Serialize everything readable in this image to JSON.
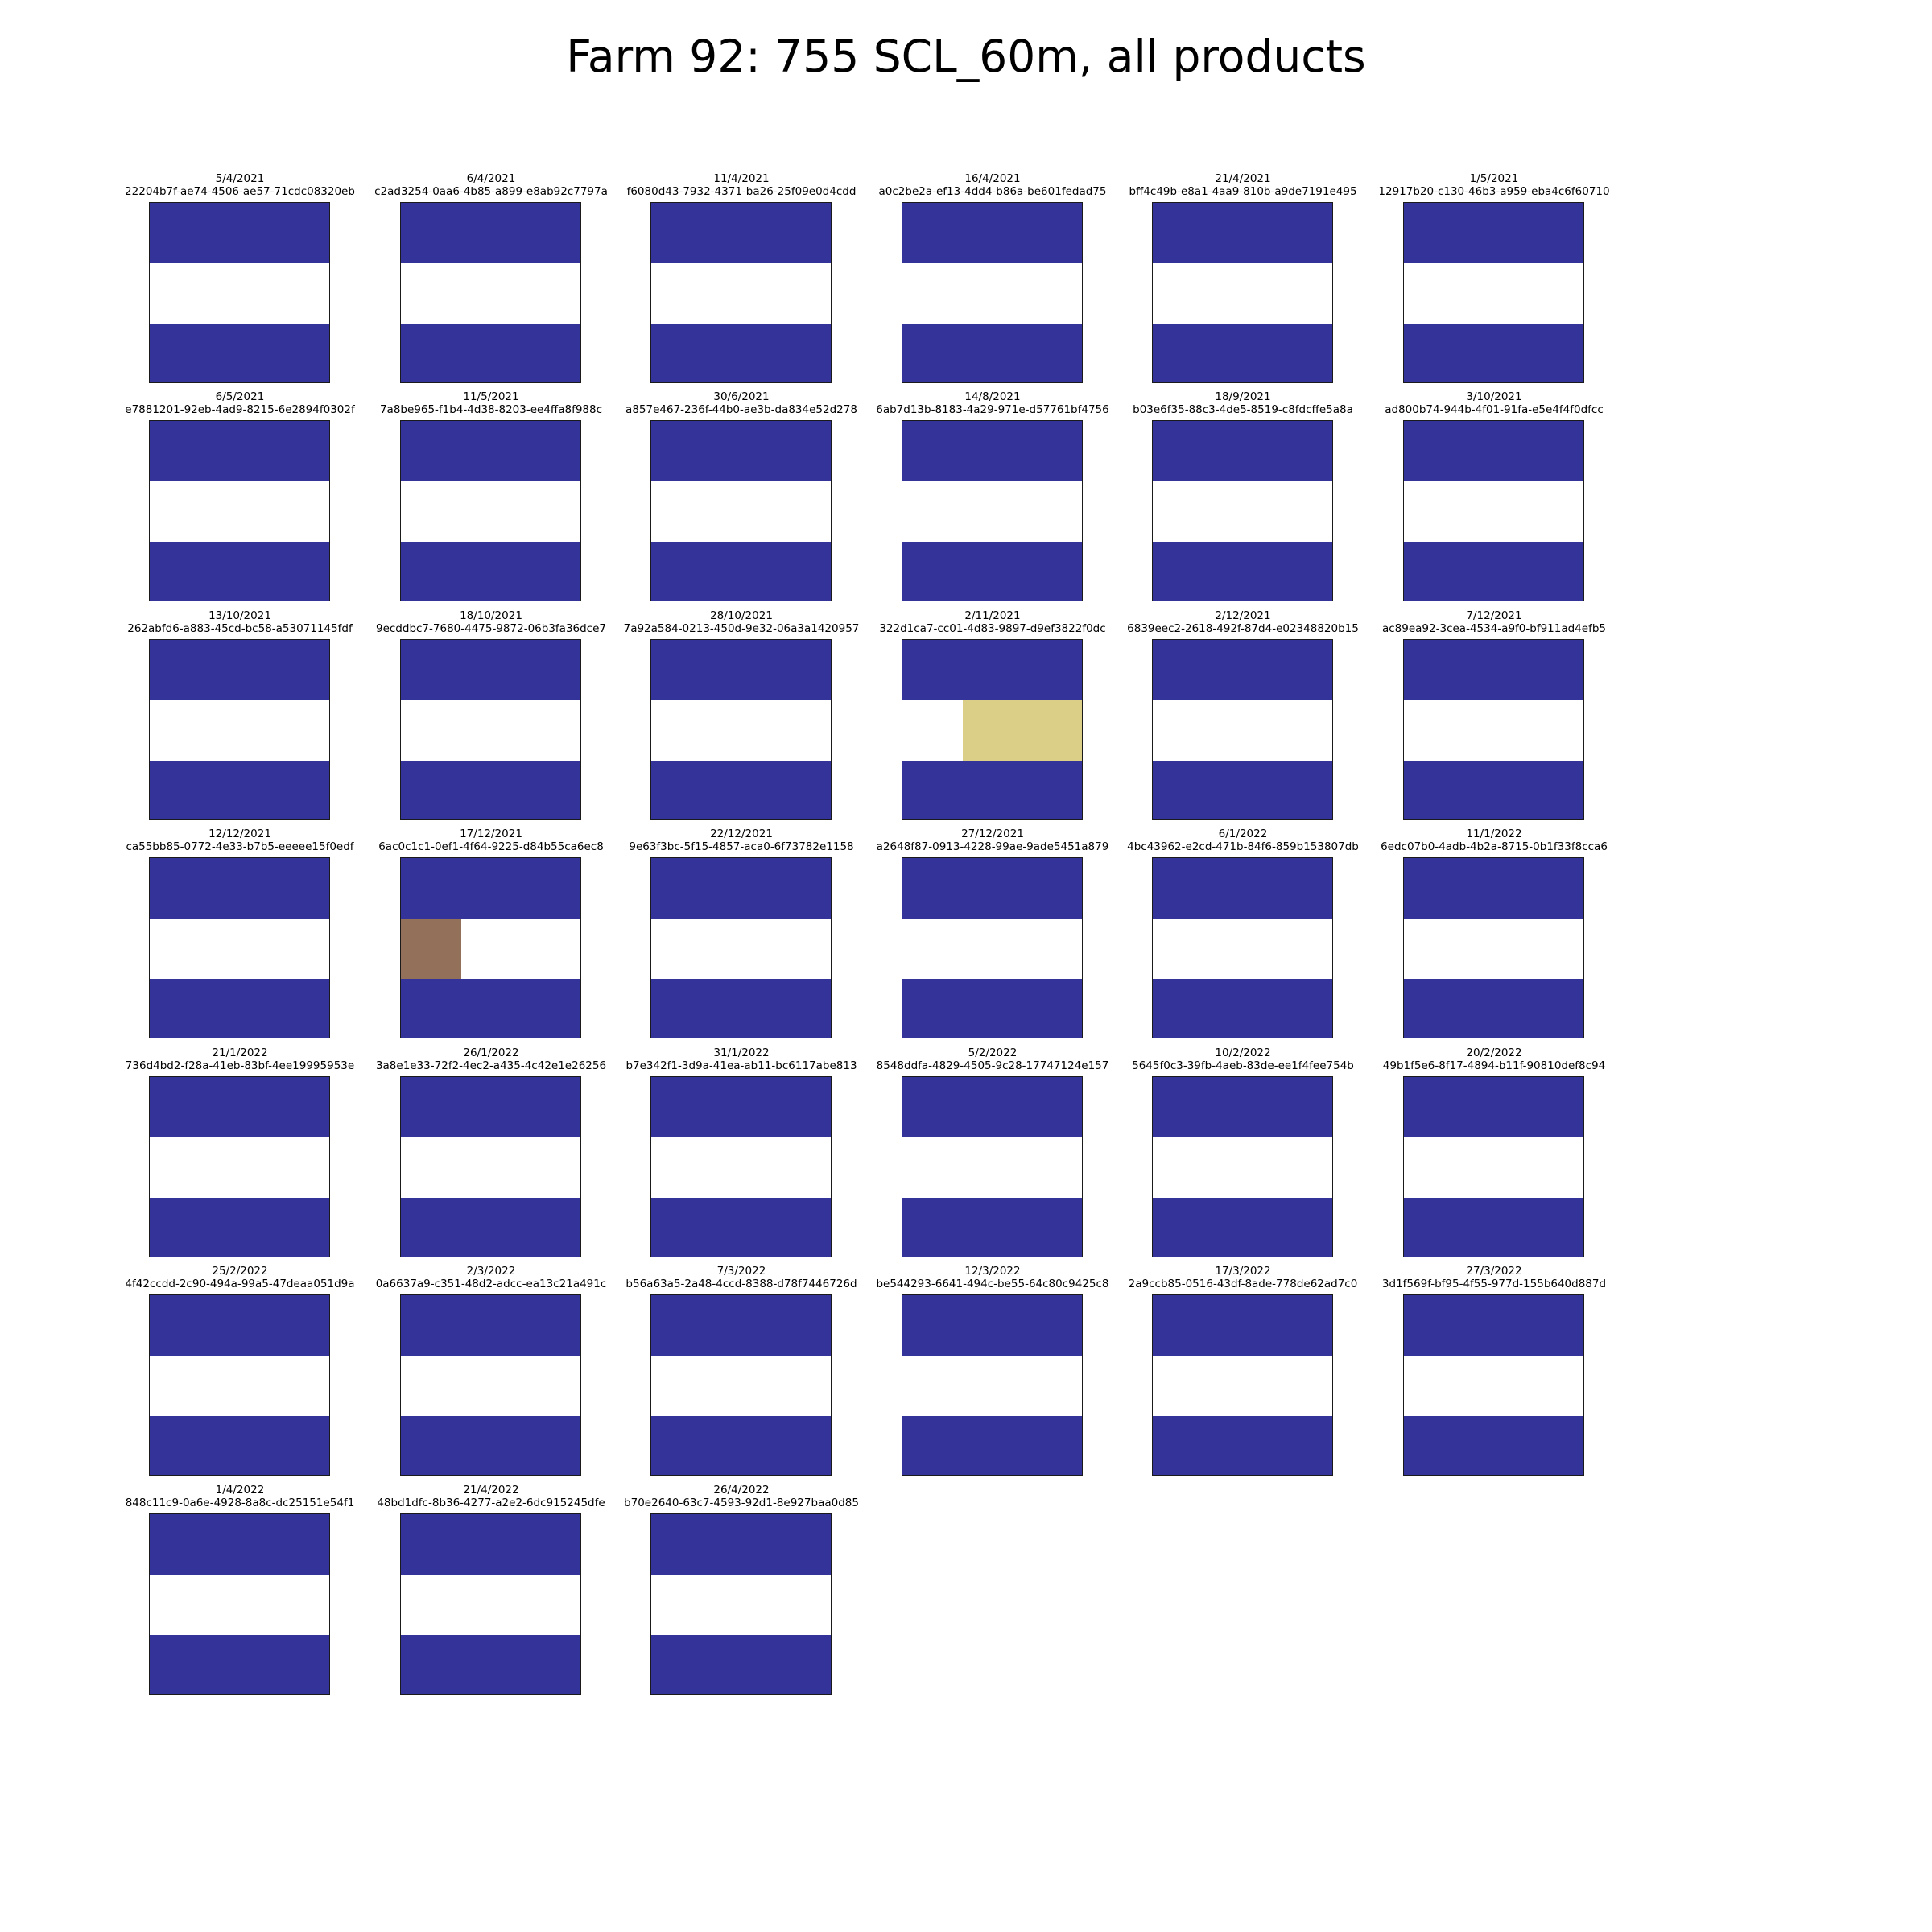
{
  "title": "Farm 92: 755 SCL_60m, all products",
  "colors": {
    "water": "#34339a",
    "unclassified": "#ffffff",
    "bare": "#dbcf88",
    "dark": "#93705a",
    "frame": "#1a1a1a"
  },
  "chart_data": {
    "type": "heatmap",
    "title": "Farm 92: 755 SCL_60m, all products",
    "grid": false,
    "layout": {
      "columns": 6,
      "rows": 7
    },
    "tile_shape": {
      "rows": 3,
      "cols": 3
    },
    "panels": [
      {
        "date": "5/4/2021",
        "id": "22204b7f-ae74-4506-ae57-71cdc08320eb",
        "cells": [
          [
            "water",
            "water",
            "water"
          ],
          [
            "unclassified",
            "unclassified",
            "unclassified"
          ],
          [
            "water",
            "water",
            "water"
          ]
        ]
      },
      {
        "date": "6/4/2021",
        "id": "c2ad3254-0aa6-4b85-a899-e8ab92c7797a",
        "cells": [
          [
            "water",
            "water",
            "water"
          ],
          [
            "unclassified",
            "unclassified",
            "unclassified"
          ],
          [
            "water",
            "water",
            "water"
          ]
        ]
      },
      {
        "date": "11/4/2021",
        "id": "f6080d43-7932-4371-ba26-25f09e0d4cdd",
        "cells": [
          [
            "water",
            "water",
            "water"
          ],
          [
            "unclassified",
            "unclassified",
            "unclassified"
          ],
          [
            "water",
            "water",
            "water"
          ]
        ]
      },
      {
        "date": "16/4/2021",
        "id": "a0c2be2a-ef13-4dd4-b86a-be601fedad75",
        "cells": [
          [
            "water",
            "water",
            "water"
          ],
          [
            "unclassified",
            "unclassified",
            "unclassified"
          ],
          [
            "water",
            "water",
            "water"
          ]
        ]
      },
      {
        "date": "21/4/2021",
        "id": "bff4c49b-e8a1-4aa9-810b-a9de7191e495",
        "cells": [
          [
            "water",
            "water",
            "water"
          ],
          [
            "unclassified",
            "unclassified",
            "unclassified"
          ],
          [
            "water",
            "water",
            "water"
          ]
        ]
      },
      {
        "date": "1/5/2021",
        "id": "12917b20-c130-46b3-a959-eba4c6f60710",
        "cells": [
          [
            "water",
            "water",
            "water"
          ],
          [
            "unclassified",
            "unclassified",
            "unclassified"
          ],
          [
            "water",
            "water",
            "water"
          ]
        ]
      },
      {
        "date": "6/5/2021",
        "id": "e7881201-92eb-4ad9-8215-6e2894f0302f",
        "cells": [
          [
            "water",
            "water",
            "water"
          ],
          [
            "unclassified",
            "unclassified",
            "unclassified"
          ],
          [
            "water",
            "water",
            "water"
          ]
        ]
      },
      {
        "date": "11/5/2021",
        "id": "7a8be965-f1b4-4d38-8203-ee4ffa8f988c",
        "cells": [
          [
            "water",
            "water",
            "water"
          ],
          [
            "unclassified",
            "unclassified",
            "unclassified"
          ],
          [
            "water",
            "water",
            "water"
          ]
        ]
      },
      {
        "date": "30/6/2021",
        "id": "a857e467-236f-44b0-ae3b-da834e52d278",
        "cells": [
          [
            "water",
            "water",
            "water"
          ],
          [
            "unclassified",
            "unclassified",
            "unclassified"
          ],
          [
            "water",
            "water",
            "water"
          ]
        ]
      },
      {
        "date": "14/8/2021",
        "id": "6ab7d13b-8183-4a29-971e-d57761bf4756",
        "cells": [
          [
            "water",
            "water",
            "water"
          ],
          [
            "unclassified",
            "unclassified",
            "unclassified"
          ],
          [
            "water",
            "water",
            "water"
          ]
        ]
      },
      {
        "date": "18/9/2021",
        "id": "b03e6f35-88c3-4de5-8519-c8fdcffe5a8a",
        "cells": [
          [
            "water",
            "water",
            "water"
          ],
          [
            "unclassified",
            "unclassified",
            "unclassified"
          ],
          [
            "water",
            "water",
            "water"
          ]
        ]
      },
      {
        "date": "3/10/2021",
        "id": "ad800b74-944b-4f01-91fa-e5e4f4f0dfcc",
        "cells": [
          [
            "water",
            "water",
            "water"
          ],
          [
            "unclassified",
            "unclassified",
            "unclassified"
          ],
          [
            "water",
            "water",
            "water"
          ]
        ]
      },
      {
        "date": "13/10/2021",
        "id": "262abfd6-a883-45cd-bc58-a53071145fdf",
        "cells": [
          [
            "water",
            "water",
            "water"
          ],
          [
            "unclassified",
            "unclassified",
            "unclassified"
          ],
          [
            "water",
            "water",
            "water"
          ]
        ]
      },
      {
        "date": "18/10/2021",
        "id": "9ecddbc7-7680-4475-9872-06b3fa36dce7",
        "cells": [
          [
            "water",
            "water",
            "water"
          ],
          [
            "unclassified",
            "unclassified",
            "unclassified"
          ],
          [
            "water",
            "water",
            "water"
          ]
        ]
      },
      {
        "date": "28/10/2021",
        "id": "7a92a584-0213-450d-9e32-06a3a1420957",
        "cells": [
          [
            "water",
            "water",
            "water"
          ],
          [
            "unclassified",
            "unclassified",
            "unclassified"
          ],
          [
            "water",
            "water",
            "water"
          ]
        ]
      },
      {
        "date": "2/11/2021",
        "id": "322d1ca7-cc01-4d83-9897-d9ef3822f0dc",
        "cells": [
          [
            "water",
            "water",
            "water"
          ],
          [
            "unclassified",
            "bare",
            "bare"
          ],
          [
            "water",
            "water",
            "water"
          ]
        ]
      },
      {
        "date": "2/12/2021",
        "id": "6839eec2-2618-492f-87d4-e02348820b15",
        "cells": [
          [
            "water",
            "water",
            "water"
          ],
          [
            "unclassified",
            "unclassified",
            "unclassified"
          ],
          [
            "water",
            "water",
            "water"
          ]
        ]
      },
      {
        "date": "7/12/2021",
        "id": "ac89ea92-3cea-4534-a9f0-bf911ad4efb5",
        "cells": [
          [
            "water",
            "water",
            "water"
          ],
          [
            "unclassified",
            "unclassified",
            "unclassified"
          ],
          [
            "water",
            "water",
            "water"
          ]
        ]
      },
      {
        "date": "12/12/2021",
        "id": "ca55bb85-0772-4e33-b7b5-eeeee15f0edf",
        "cells": [
          [
            "water",
            "water",
            "water"
          ],
          [
            "unclassified",
            "unclassified",
            "unclassified"
          ],
          [
            "water",
            "water",
            "water"
          ]
        ]
      },
      {
        "date": "17/12/2021",
        "id": "6ac0c1c1-0ef1-4f64-9225-d84b55ca6ec8",
        "cells": [
          [
            "water",
            "water",
            "water"
          ],
          [
            "dark",
            "unclassified",
            "unclassified"
          ],
          [
            "water",
            "water",
            "water"
          ]
        ]
      },
      {
        "date": "22/12/2021",
        "id": "9e63f3bc-5f15-4857-aca0-6f73782e1158",
        "cells": [
          [
            "water",
            "water",
            "water"
          ],
          [
            "unclassified",
            "unclassified",
            "unclassified"
          ],
          [
            "water",
            "water",
            "water"
          ]
        ]
      },
      {
        "date": "27/12/2021",
        "id": "a2648f87-0913-4228-99ae-9ade5451a879",
        "cells": [
          [
            "water",
            "water",
            "water"
          ],
          [
            "unclassified",
            "unclassified",
            "unclassified"
          ],
          [
            "water",
            "water",
            "water"
          ]
        ]
      },
      {
        "date": "6/1/2022",
        "id": "4bc43962-e2cd-471b-84f6-859b153807db",
        "cells": [
          [
            "water",
            "water",
            "water"
          ],
          [
            "unclassified",
            "unclassified",
            "unclassified"
          ],
          [
            "water",
            "water",
            "water"
          ]
        ]
      },
      {
        "date": "11/1/2022",
        "id": "6edc07b0-4adb-4b2a-8715-0b1f33f8cca6",
        "cells": [
          [
            "water",
            "water",
            "water"
          ],
          [
            "unclassified",
            "unclassified",
            "unclassified"
          ],
          [
            "water",
            "water",
            "water"
          ]
        ]
      },
      {
        "date": "21/1/2022",
        "id": "736d4bd2-f28a-41eb-83bf-4ee19995953e",
        "cells": [
          [
            "water",
            "water",
            "water"
          ],
          [
            "unclassified",
            "unclassified",
            "unclassified"
          ],
          [
            "water",
            "water",
            "water"
          ]
        ]
      },
      {
        "date": "26/1/2022",
        "id": "3a8e1e33-72f2-4ec2-a435-4c42e1e26256",
        "cells": [
          [
            "water",
            "water",
            "water"
          ],
          [
            "unclassified",
            "unclassified",
            "unclassified"
          ],
          [
            "water",
            "water",
            "water"
          ]
        ]
      },
      {
        "date": "31/1/2022",
        "id": "b7e342f1-3d9a-41ea-ab11-bc6117abe813",
        "cells": [
          [
            "water",
            "water",
            "water"
          ],
          [
            "unclassified",
            "unclassified",
            "unclassified"
          ],
          [
            "water",
            "water",
            "water"
          ]
        ]
      },
      {
        "date": "5/2/2022",
        "id": "8548ddfa-4829-4505-9c28-17747124e157",
        "cells": [
          [
            "water",
            "water",
            "water"
          ],
          [
            "unclassified",
            "unclassified",
            "unclassified"
          ],
          [
            "water",
            "water",
            "water"
          ]
        ]
      },
      {
        "date": "10/2/2022",
        "id": "5645f0c3-39fb-4aeb-83de-ee1f4fee754b",
        "cells": [
          [
            "water",
            "water",
            "water"
          ],
          [
            "unclassified",
            "unclassified",
            "unclassified"
          ],
          [
            "water",
            "water",
            "water"
          ]
        ]
      },
      {
        "date": "20/2/2022",
        "id": "49b1f5e6-8f17-4894-b11f-90810def8c94",
        "cells": [
          [
            "water",
            "water",
            "water"
          ],
          [
            "unclassified",
            "unclassified",
            "unclassified"
          ],
          [
            "water",
            "water",
            "water"
          ]
        ]
      },
      {
        "date": "25/2/2022",
        "id": "4f42ccdd-2c90-494a-99a5-47deaa051d9a",
        "cells": [
          [
            "water",
            "water",
            "water"
          ],
          [
            "unclassified",
            "unclassified",
            "unclassified"
          ],
          [
            "water",
            "water",
            "water"
          ]
        ]
      },
      {
        "date": "2/3/2022",
        "id": "0a6637a9-c351-48d2-adcc-ea13c21a491c",
        "cells": [
          [
            "water",
            "water",
            "water"
          ],
          [
            "unclassified",
            "unclassified",
            "unclassified"
          ],
          [
            "water",
            "water",
            "water"
          ]
        ]
      },
      {
        "date": "7/3/2022",
        "id": "b56a63a5-2a48-4ccd-8388-d78f7446726d",
        "cells": [
          [
            "water",
            "water",
            "water"
          ],
          [
            "unclassified",
            "unclassified",
            "unclassified"
          ],
          [
            "water",
            "water",
            "water"
          ]
        ]
      },
      {
        "date": "12/3/2022",
        "id": "be544293-6641-494c-be55-64c80c9425c8",
        "cells": [
          [
            "water",
            "water",
            "water"
          ],
          [
            "unclassified",
            "unclassified",
            "unclassified"
          ],
          [
            "water",
            "water",
            "water"
          ]
        ]
      },
      {
        "date": "17/3/2022",
        "id": "2a9ccb85-0516-43df-8ade-778de62ad7c0",
        "cells": [
          [
            "water",
            "water",
            "water"
          ],
          [
            "unclassified",
            "unclassified",
            "unclassified"
          ],
          [
            "water",
            "water",
            "water"
          ]
        ]
      },
      {
        "date": "27/3/2022",
        "id": "3d1f569f-bf95-4f55-977d-155b640d887d",
        "cells": [
          [
            "water",
            "water",
            "water"
          ],
          [
            "unclassified",
            "unclassified",
            "unclassified"
          ],
          [
            "water",
            "water",
            "water"
          ]
        ]
      },
      {
        "date": "1/4/2022",
        "id": "848c11c9-0a6e-4928-8a8c-dc25151e54f1",
        "cells": [
          [
            "water",
            "water",
            "water"
          ],
          [
            "unclassified",
            "unclassified",
            "unclassified"
          ],
          [
            "water",
            "water",
            "water"
          ]
        ]
      },
      {
        "date": "21/4/2022",
        "id": "48bd1dfc-8b36-4277-a2e2-6dc915245dfe",
        "cells": [
          [
            "water",
            "water",
            "water"
          ],
          [
            "unclassified",
            "unclassified",
            "unclassified"
          ],
          [
            "water",
            "water",
            "water"
          ]
        ]
      },
      {
        "date": "26/4/2022",
        "id": "b70e2640-63c7-4593-92d1-8e927baa0d85",
        "cells": [
          [
            "water",
            "water",
            "water"
          ],
          [
            "unclassified",
            "unclassified",
            "unclassified"
          ],
          [
            "water",
            "water",
            "water"
          ]
        ]
      }
    ]
  }
}
